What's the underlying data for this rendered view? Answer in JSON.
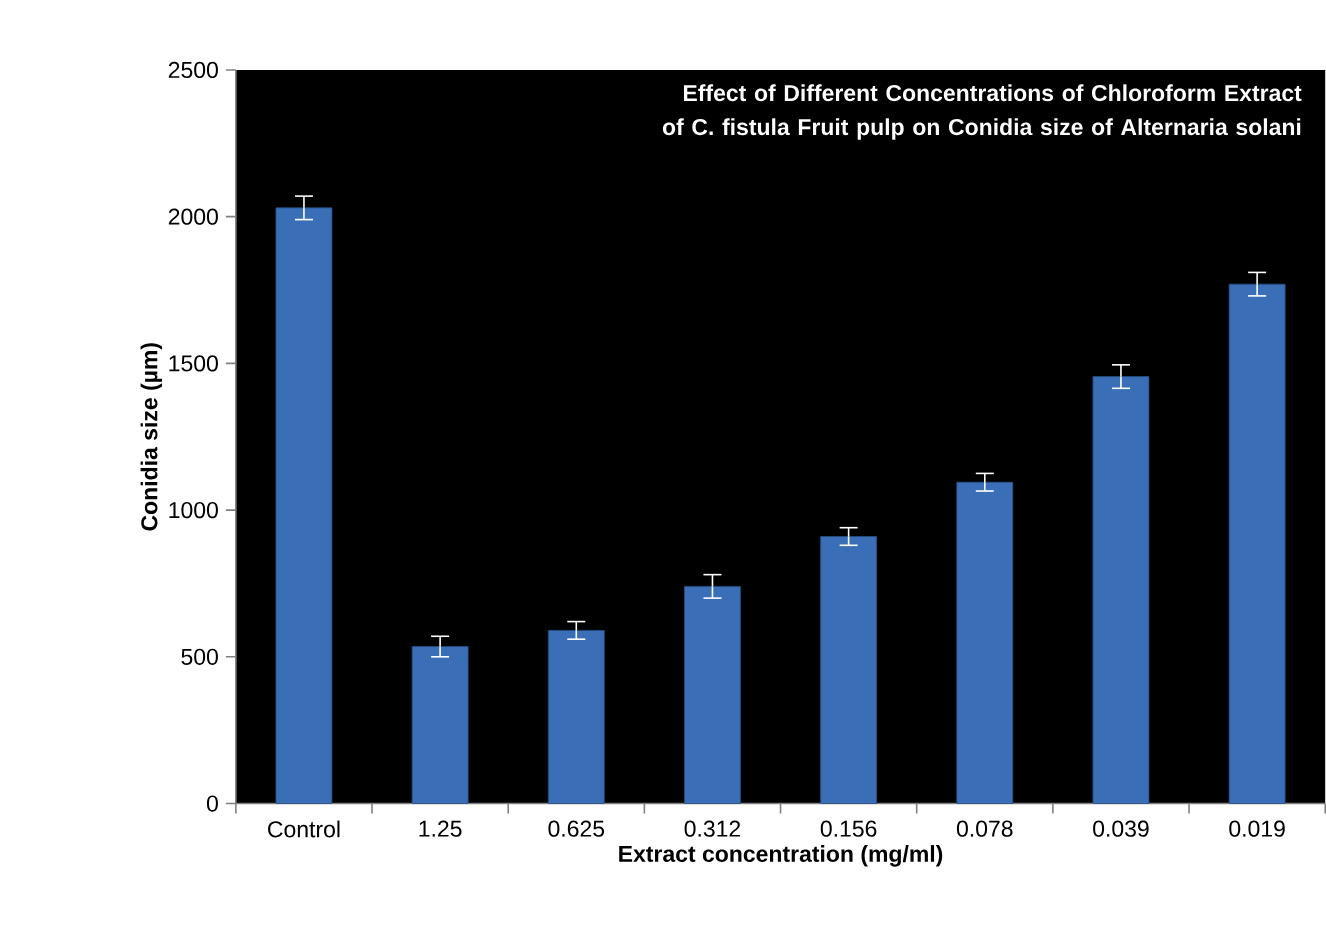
{
  "chart_data": {
    "type": "bar",
    "title": "Effect of Different Concentrations of Chloroform Extract of C. fistula Fruit pulp on Conidia size of Alternaria solani",
    "xlabel": "Extract concentration (mg/ml)",
    "ylabel": "Conidia size (µm)",
    "categories": [
      "Control",
      "1.25",
      "0.625",
      "0.312",
      "0.156",
      "0.078",
      "0.039",
      "0.019"
    ],
    "values": [
      2030,
      535,
      590,
      740,
      910,
      1095,
      1455,
      1770
    ],
    "errors": [
      40,
      35,
      30,
      40,
      30,
      30,
      40,
      40
    ],
    "color": "#3a6fb8",
    "ylim": [
      0,
      2500
    ],
    "yticks": [
      0,
      500,
      1000,
      1500,
      2000,
      2500
    ],
    "grid": false
  }
}
